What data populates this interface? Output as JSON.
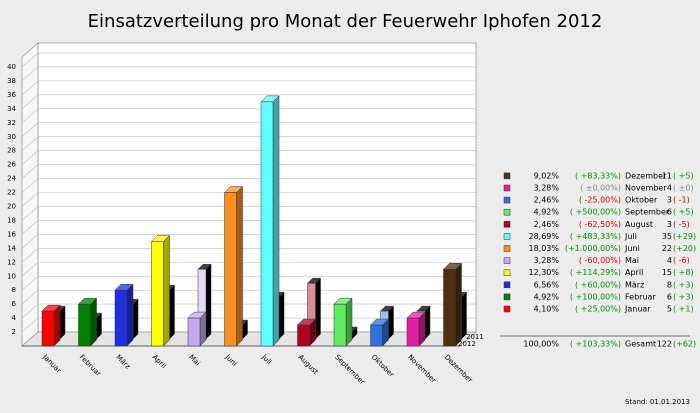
{
  "chart_data": {
    "type": "bar",
    "title": "Einsatzverteilung pro Monat der Feuerwehr Iphofen 2012",
    "categories": [
      "Januar",
      "Februar",
      "März",
      "April",
      "Mai",
      "Juni",
      "Juli",
      "August",
      "September",
      "Oktober",
      "November",
      "Dezember"
    ],
    "colors": [
      "#ff0000",
      "#008000",
      "#2030e0",
      "#ffff00",
      "#c4a8f0",
      "#ff9020",
      "#60ffff",
      "#b00020",
      "#60ee60",
      "#3070e0",
      "#e020a0",
      "#503010"
    ],
    "series": [
      {
        "name": "2012",
        "values": [
          5,
          6,
          8,
          15,
          4,
          22,
          35,
          3,
          6,
          3,
          4,
          11
        ]
      },
      {
        "name": "2011",
        "values": [
          4,
          3,
          5,
          7,
          10,
          2,
          6,
          8,
          1,
          4,
          4,
          6
        ]
      }
    ],
    "ylim": [
      0,
      40
    ],
    "yticks": [
      2,
      4,
      6,
      8,
      10,
      12,
      14,
      16,
      18,
      20,
      22,
      24,
      26,
      28,
      30,
      32,
      34,
      36,
      38,
      40
    ],
    "grid": true,
    "legend_table": {
      "rows": [
        {
          "share": "4,10%",
          "change": "( +25,00%)",
          "diff": "( +1)"
        },
        {
          "share": "4,92%",
          "change": "( +100,00%)",
          "diff": "( +3)"
        },
        {
          "share": "6,56%",
          "change": "( +60,00%)",
          "diff": "( +3)"
        },
        {
          "share": "12,30%",
          "change": "( +114,29%)",
          "diff": "( +8)"
        },
        {
          "share": "3,28%",
          "change": "( -60,00%)",
          "diff": "( -6)"
        },
        {
          "share": "18,03%",
          "change": "(+1.000,00%)",
          "diff": "(+20)"
        },
        {
          "share": "28,69%",
          "change": "( +483,33%)",
          "diff": "(+29)"
        },
        {
          "share": "2,46%",
          "change": "( -62,50%)",
          "diff": "( -5)"
        },
        {
          "share": "4,92%",
          "change": "( +500,00%)",
          "diff": "( +5)"
        },
        {
          "share": "2,46%",
          "change": "( -25,00%)",
          "diff": "( -1)"
        },
        {
          "share": "3,28%",
          "change": "( ±0,00%)",
          "diff": "( ±0)"
        },
        {
          "share": "9,02%",
          "change": "( +83,33%)",
          "diff": "( +5)"
        }
      ],
      "total": {
        "share": "100,00%",
        "change": "( +103,33%)",
        "label": "Gesamt",
        "value": 122,
        "diff": "(+62)"
      }
    },
    "footer": "Stand: 01.01.2013"
  }
}
